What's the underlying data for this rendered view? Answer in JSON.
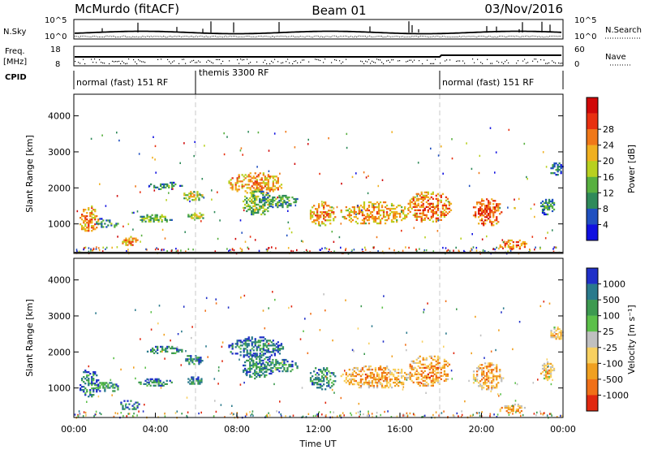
{
  "header": {
    "station": "McMurdo (fitACF)",
    "beam": "Beam 01",
    "date": "03/Nov/2016"
  },
  "strips": {
    "noise": {
      "left_label": "N.Sky",
      "right_label": "N.Search",
      "left_ticks": [
        "10^5",
        "10^0"
      ],
      "right_ticks": [
        "10^5",
        "10^0"
      ]
    },
    "freq": {
      "left_label_lines": [
        "Freq.",
        "[MHz]"
      ],
      "right_label": "Nave",
      "left_ticks": [
        "18",
        "8"
      ],
      "right_ticks": [
        "60",
        "0"
      ]
    },
    "cpid": {
      "label": "CPID",
      "segments": [
        {
          "text": "normal (fast) 151 RF",
          "start_hour": 0,
          "end_hour": 6
        },
        {
          "text": "themis 3300 RF",
          "start_hour": 6,
          "end_hour": 18
        },
        {
          "text": "normal (fast) 151 RF",
          "start_hour": 18,
          "end_hour": 24
        }
      ]
    }
  },
  "chart_data": [
    {
      "type": "heatmap",
      "panel": "power",
      "ylabel": "Slant Range [km]",
      "xlim": [
        0,
        24
      ],
      "ylim": [
        180,
        4600
      ],
      "yticks": [
        1000,
        2000,
        3000,
        4000
      ],
      "colorbar": {
        "label": "Power [dB]",
        "ticks": [
          "4",
          "8",
          "12",
          "16",
          "20",
          "24",
          "28"
        ],
        "colors": [
          "#1010e0",
          "#2050c0",
          "#2f8a5a",
          "#58b040",
          "#b8d020",
          "#f0b020",
          "#f07818",
          "#e83010",
          "#d00808"
        ]
      },
      "regions": [
        {
          "t": [
            0.2,
            1.2
          ],
          "r": [
            700,
            1500
          ],
          "level": 0.75
        },
        {
          "t": [
            1.0,
            2.2
          ],
          "r": [
            850,
            1150
          ],
          "level": 0.4
        },
        {
          "t": [
            2.2,
            3.2
          ],
          "r": [
            350,
            650
          ],
          "level": 0.75
        },
        {
          "t": [
            3.0,
            4.8
          ],
          "r": [
            1000,
            1250
          ],
          "level": 0.45
        },
        {
          "t": [
            3.5,
            5.3
          ],
          "r": [
            1900,
            2150
          ],
          "level": 0.35
        },
        {
          "t": [
            5.3,
            6.3
          ],
          "r": [
            1600,
            1900
          ],
          "level": 0.6
        },
        {
          "t": [
            5.5,
            6.4
          ],
          "r": [
            1050,
            1300
          ],
          "level": 0.55
        },
        {
          "t": [
            7.5,
            10.3
          ],
          "r": [
            1800,
            2400
          ],
          "level": 0.75
        },
        {
          "t": [
            8.2,
            9.8
          ],
          "r": [
            1200,
            1900
          ],
          "level": 0.5
        },
        {
          "t": [
            9.0,
            11.0
          ],
          "r": [
            1400,
            1800
          ],
          "level": 0.4
        },
        {
          "t": [
            11.5,
            12.8
          ],
          "r": [
            900,
            1600
          ],
          "level": 0.75
        },
        {
          "t": [
            13.0,
            16.5
          ],
          "r": [
            950,
            1600
          ],
          "level": 0.7
        },
        {
          "t": [
            16.3,
            18.5
          ],
          "r": [
            1000,
            1900
          ],
          "level": 0.8
        },
        {
          "t": [
            19.5,
            21.0
          ],
          "r": [
            900,
            1700
          ],
          "level": 0.85
        },
        {
          "t": [
            20.8,
            22.2
          ],
          "r": [
            250,
            550
          ],
          "level": 0.8
        },
        {
          "t": [
            22.8,
            23.6
          ],
          "r": [
            1200,
            1700
          ],
          "level": 0.35
        },
        {
          "t": [
            23.3,
            24.0
          ],
          "r": [
            2300,
            2700
          ],
          "level": 0.35
        }
      ]
    },
    {
      "type": "heatmap",
      "panel": "velocity",
      "ylabel": "Slant Range [km]",
      "xlabel": "Time UT",
      "xlim": [
        0,
        24
      ],
      "ylim": [
        180,
        4600
      ],
      "yticks": [
        1000,
        2000,
        3000,
        4000
      ],
      "xticks": [
        "00:00",
        "04:00",
        "08:00",
        "12:00",
        "16:00",
        "20:00",
        "00:00"
      ],
      "colorbar": {
        "label": "Velocity [m s⁻¹]",
        "ticks": [
          "1000",
          "500",
          "100",
          "25",
          "-25",
          "-100",
          "-500",
          "-1000"
        ],
        "colors": [
          "#2030c8",
          "#2a7a8c",
          "#3d9a50",
          "#5cc04a",
          "#c0c0c0",
          "#f8d060",
          "#f0a020",
          "#f07018",
          "#e02810"
        ]
      },
      "regions": [
        {
          "t": [
            0.2,
            1.2
          ],
          "r": [
            700,
            1500
          ],
          "level": 0.3
        },
        {
          "t": [
            1.0,
            2.2
          ],
          "r": [
            850,
            1150
          ],
          "level": 0.35
        },
        {
          "t": [
            2.2,
            3.2
          ],
          "r": [
            350,
            650
          ],
          "level": 0.25
        },
        {
          "t": [
            3.0,
            4.8
          ],
          "r": [
            1000,
            1250
          ],
          "level": 0.3
        },
        {
          "t": [
            3.5,
            5.3
          ],
          "r": [
            1900,
            2150
          ],
          "level": 0.3
        },
        {
          "t": [
            5.3,
            6.3
          ],
          "r": [
            1600,
            1900
          ],
          "level": 0.3
        },
        {
          "t": [
            5.5,
            6.4
          ],
          "r": [
            1050,
            1300
          ],
          "level": 0.3
        },
        {
          "t": [
            7.5,
            10.3
          ],
          "r": [
            1800,
            2400
          ],
          "level": 0.28
        },
        {
          "t": [
            8.2,
            9.8
          ],
          "r": [
            1200,
            1900
          ],
          "level": 0.3
        },
        {
          "t": [
            9.0,
            11.0
          ],
          "r": [
            1400,
            1800
          ],
          "level": 0.3
        },
        {
          "t": [
            11.5,
            12.8
          ],
          "r": [
            900,
            1600
          ],
          "level": 0.35
        },
        {
          "t": [
            13.0,
            16.5
          ],
          "r": [
            950,
            1600
          ],
          "level": 0.78
        },
        {
          "t": [
            16.3,
            18.5
          ],
          "r": [
            1000,
            1900
          ],
          "level": 0.8
        },
        {
          "t": [
            19.5,
            21.0
          ],
          "r": [
            900,
            1700
          ],
          "level": 0.78
        },
        {
          "t": [
            20.8,
            22.2
          ],
          "r": [
            250,
            550
          ],
          "level": 0.75
        },
        {
          "t": [
            22.8,
            23.6
          ],
          "r": [
            1200,
            1700
          ],
          "level": 0.7
        },
        {
          "t": [
            23.3,
            24.0
          ],
          "r": [
            2300,
            2700
          ],
          "level": 0.72
        }
      ]
    }
  ]
}
